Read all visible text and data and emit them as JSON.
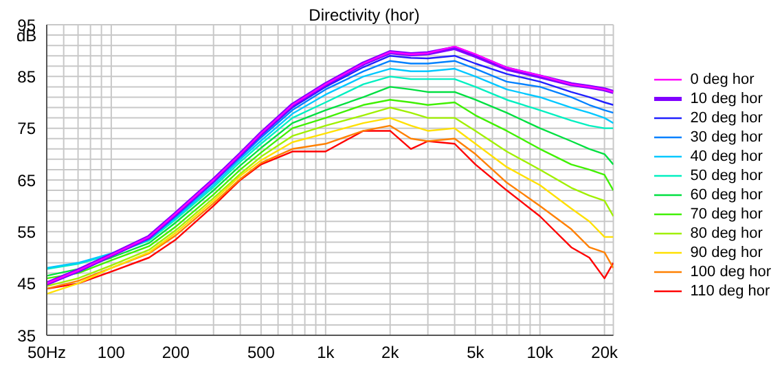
{
  "chart_data": {
    "type": "line",
    "title": "Directivity (hor)",
    "ylabel": "dB",
    "log": "x",
    "grid": true,
    "legend": "right",
    "marker": "none",
    "line_style": "solid",
    "x": [
      50,
      70,
      100,
      150,
      200,
      300,
      400,
      500,
      700,
      1000,
      1500,
      2000,
      2500,
      3000,
      4000,
      5000,
      7000,
      10000,
      14000,
      17000,
      20000,
      22000
    ],
    "xlim": [
      50,
      22000
    ],
    "xticks": [
      {
        "value": 50,
        "label": "50Hz"
      },
      {
        "value": 60,
        "label": null
      },
      {
        "value": 70,
        "label": null
      },
      {
        "value": 80,
        "label": null
      },
      {
        "value": 90,
        "label": null
      },
      100,
      200,
      {
        "value": 300,
        "label": null
      },
      {
        "value": 400,
        "label": null
      },
      500,
      {
        "value": 600,
        "label": null
      },
      {
        "value": 700,
        "label": null
      },
      {
        "value": 800,
        "label": null
      },
      {
        "value": 900,
        "label": null
      },
      {
        "value": 1000,
        "label": "1k"
      },
      {
        "value": 2000,
        "label": "2k"
      },
      {
        "value": 3000,
        "label": null
      },
      {
        "value": 4000,
        "label": null
      },
      {
        "value": 5000,
        "label": "5k"
      },
      {
        "value": 6000,
        "label": null
      },
      {
        "value": 7000,
        "label": null
      },
      {
        "value": 8000,
        "label": null
      },
      {
        "value": 9000,
        "label": null
      },
      {
        "value": 10000,
        "label": "10k"
      },
      {
        "value": 20000,
        "label": "20k"
      }
    ],
    "ylim": [
      35,
      95
    ],
    "yticks": [
      35,
      {
        "value": 37,
        "label": null
      },
      {
        "value": 39,
        "label": null
      },
      {
        "value": 41,
        "label": null
      },
      {
        "value": 43,
        "label": null
      },
      45,
      {
        "value": 47,
        "label": null
      },
      {
        "value": 49,
        "label": null
      },
      {
        "value": 51,
        "label": null
      },
      {
        "value": 53,
        "label": null
      },
      55,
      {
        "value": 57,
        "label": null
      },
      {
        "value": 59,
        "label": null
      },
      {
        "value": 61,
        "label": null
      },
      {
        "value": 63,
        "label": null
      },
      65,
      {
        "value": 67,
        "label": null
      },
      {
        "value": 69,
        "label": null
      },
      {
        "value": 71,
        "label": null
      },
      {
        "value": 73,
        "label": null
      },
      75,
      {
        "value": 77,
        "label": null
      },
      {
        "value": 79,
        "label": null
      },
      {
        "value": 81,
        "label": null
      },
      {
        "value": 83,
        "label": null
      },
      85,
      {
        "value": 87,
        "label": null
      },
      {
        "value": 89,
        "label": null
      },
      {
        "value": 91,
        "label": null
      },
      {
        "value": 93,
        "label": null
      },
      95
    ],
    "series": [
      {
        "name": "0 deg hor",
        "color": "#ff00ff",
        "values": [
          45,
          47.5,
          50.5,
          54,
          58.5,
          65,
          70,
          74,
          79.5,
          83.5,
          87.5,
          89.7,
          89.3,
          89.5,
          90.8,
          89.3,
          86.7,
          85.2,
          83.5,
          83,
          82.5,
          82
        ]
      },
      {
        "name": "10 deg hor",
        "color": "#8000ff",
        "values": [
          45,
          47.5,
          50.5,
          54,
          58.5,
          65,
          70,
          74,
          79.5,
          83.5,
          87.5,
          89.7,
          89.3,
          89.5,
          90.5,
          89,
          86.5,
          85,
          83.5,
          83,
          82.5,
          82
        ]
      },
      {
        "name": "20 deg hor",
        "color": "#2020ff",
        "values": [
          44.8,
          47.3,
          50.3,
          53.8,
          58.2,
          64.7,
          69.7,
          73.6,
          79,
          83,
          86.8,
          89,
          88.6,
          88.5,
          89,
          87.5,
          85.5,
          84,
          82,
          81,
          80,
          79.5
        ]
      },
      {
        "name": "30 deg hor",
        "color": "#0080ff",
        "values": [
          45,
          47.2,
          50.3,
          53.6,
          58,
          64.5,
          69.4,
          73.2,
          78.5,
          82.5,
          86,
          88,
          87.5,
          87.5,
          88,
          86.5,
          84,
          83,
          81,
          79.5,
          78.5,
          78
        ]
      },
      {
        "name": "40 deg hor",
        "color": "#00c8ff",
        "values": [
          48,
          49,
          50.8,
          53.5,
          57.7,
          64,
          69,
          72.6,
          77.8,
          81.5,
          85,
          86.5,
          86,
          86,
          86.5,
          85,
          82.5,
          81,
          79,
          78,
          77,
          76
        ]
      },
      {
        "name": "50 deg hor",
        "color": "#00f0c0",
        "values": [
          47.8,
          48.8,
          50.6,
          53.3,
          57.4,
          63.6,
          68.5,
          72,
          77,
          80,
          83.5,
          85,
          84.5,
          84.5,
          84.5,
          83,
          80.5,
          78.5,
          76.5,
          75.5,
          75,
          75
        ]
      },
      {
        "name": "60 deg hor",
        "color": "#00e040",
        "values": [
          46.5,
          47.8,
          50,
          52.8,
          56.8,
          63,
          67.8,
          71.2,
          76,
          78.5,
          81,
          83,
          82.5,
          82,
          82,
          80.5,
          78,
          75,
          72.5,
          71,
          70,
          68
        ]
      },
      {
        "name": "70 deg hor",
        "color": "#40f000",
        "values": [
          46,
          47,
          49.5,
          52.2,
          56,
          62.2,
          67,
          70.3,
          75,
          77,
          79.5,
          80.5,
          80,
          79.5,
          80,
          77.5,
          74.5,
          71,
          68,
          67,
          66,
          63
        ]
      },
      {
        "name": "80 deg hor",
        "color": "#a0f000",
        "values": [
          44.5,
          46,
          48.5,
          51.5,
          55.3,
          61.5,
          66.2,
          69.5,
          73.5,
          75.5,
          77.5,
          79,
          78,
          77,
          77,
          74.5,
          70.5,
          67,
          63.5,
          62,
          61,
          58
        ]
      },
      {
        "name": "90 deg hor",
        "color": "#ffe000",
        "values": [
          43,
          45,
          48,
          51,
          54.8,
          61,
          65.8,
          68.8,
          72.3,
          74,
          76,
          77,
          75.5,
          74.5,
          75,
          72,
          67.5,
          64,
          59.5,
          57,
          54,
          54
        ]
      },
      {
        "name": "100 deg hor",
        "color": "#ff8000",
        "values": [
          44,
          45.5,
          48,
          50.8,
          54.3,
          60.5,
          65.2,
          68.3,
          71,
          72,
          74.5,
          75.5,
          73,
          72.5,
          73,
          70,
          64.5,
          60,
          55.5,
          52,
          51,
          48
        ]
      },
      {
        "name": "110 deg hor",
        "color": "#ff0000",
        "values": [
          44,
          45,
          47.3,
          50,
          53.5,
          60,
          65,
          68,
          70.5,
          70.5,
          74.5,
          74.5,
          71,
          72.5,
          72,
          68,
          63,
          58,
          52,
          50,
          46,
          49
        ]
      }
    ]
  }
}
